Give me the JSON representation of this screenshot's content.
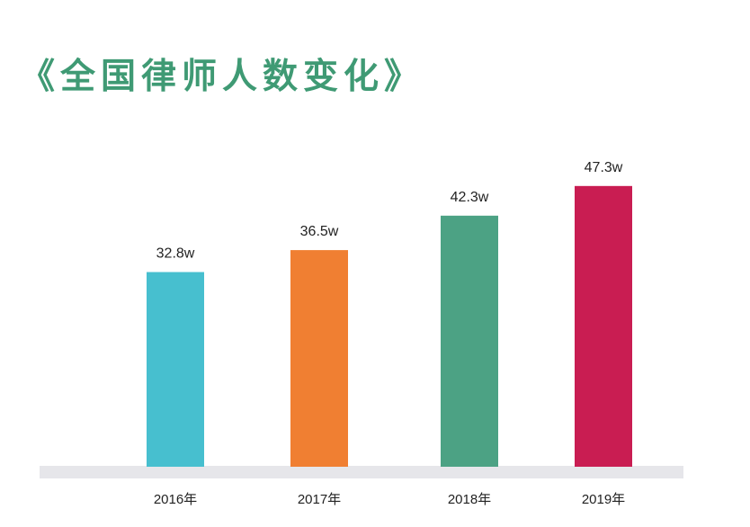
{
  "page": {
    "title": "《全国律师人数变化》"
  },
  "colors": {
    "title": "#3f9a74",
    "baseline": "#e6e6ea"
  },
  "chart_data": {
    "type": "bar",
    "title": "《全国律师人数变化》",
    "categories": [
      "2016年",
      "2017年",
      "2018年",
      "2019年"
    ],
    "values": [
      32.8,
      36.5,
      42.3,
      47.3
    ],
    "value_labels": [
      "32.8w",
      "36.5w",
      "42.3w",
      "47.3w"
    ],
    "unit": "w",
    "bar_colors": [
      "#47bfcf",
      "#f07f32",
      "#4ca284",
      "#c91d52"
    ],
    "xlabel": "",
    "ylabel": "",
    "ylim": [
      0,
      50
    ],
    "grid": false,
    "legend": "none"
  }
}
